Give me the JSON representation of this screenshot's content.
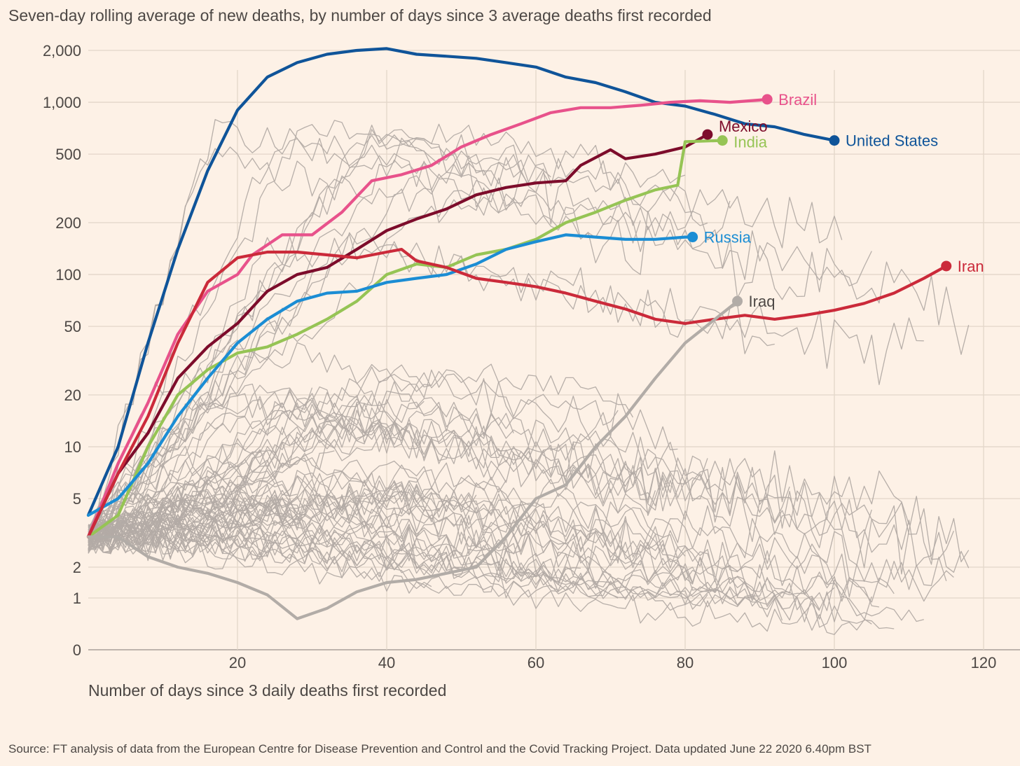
{
  "chart_data": {
    "type": "line",
    "subtitle": "Seven-day rolling average of new deaths, by number of days since 3 average deaths first recorded",
    "xlabel": "Number of days since 3 daily deaths first recorded",
    "ylabel": "",
    "source": "Source: FT analysis of data from the European Centre for Disease Prevention and Control and the Covid Tracking Project. Data updated June 22 2020 6.40pm BST",
    "x_scale": "linear",
    "y_scale": "log (with 0–2 linear segment)",
    "xlim": [
      0,
      124
    ],
    "ylim": [
      0,
      2300
    ],
    "x_ticks": [
      20,
      40,
      60,
      80,
      100,
      120
    ],
    "x_tick_labels": [
      "20",
      "40",
      "60",
      "80",
      "100",
      "120"
    ],
    "y_ticks": [
      0,
      1,
      2,
      5,
      10,
      20,
      50,
      100,
      200,
      500,
      1000,
      2000
    ],
    "y_tick_labels": [
      "0",
      "1",
      "2",
      "5",
      "10",
      "20",
      "50",
      "100",
      "200",
      "500",
      "1,000",
      "2,000"
    ],
    "grid": true,
    "legend": "none (direct labels at line ends)",
    "series": [
      {
        "name": "United States",
        "color": "#0f5499",
        "points": [
          [
            0,
            4
          ],
          [
            4,
            10
          ],
          [
            8,
            40
          ],
          [
            12,
            140
          ],
          [
            16,
            400
          ],
          [
            20,
            900
          ],
          [
            24,
            1400
          ],
          [
            28,
            1700
          ],
          [
            32,
            1900
          ],
          [
            36,
            2000
          ],
          [
            40,
            2050
          ],
          [
            44,
            1900
          ],
          [
            48,
            1850
          ],
          [
            52,
            1800
          ],
          [
            56,
            1700
          ],
          [
            60,
            1600
          ],
          [
            64,
            1400
          ],
          [
            68,
            1300
          ],
          [
            72,
            1150
          ],
          [
            76,
            1000
          ],
          [
            80,
            950
          ],
          [
            84,
            850
          ],
          [
            88,
            750
          ],
          [
            92,
            720
          ],
          [
            96,
            650
          ],
          [
            100,
            600
          ]
        ]
      },
      {
        "name": "Brazil",
        "color": "#e8528b",
        "points": [
          [
            0,
            3
          ],
          [
            4,
            8
          ],
          [
            8,
            18
          ],
          [
            12,
            45
          ],
          [
            16,
            80
          ],
          [
            20,
            100
          ],
          [
            22,
            130
          ],
          [
            26,
            170
          ],
          [
            30,
            170
          ],
          [
            34,
            230
          ],
          [
            38,
            350
          ],
          [
            42,
            380
          ],
          [
            46,
            430
          ],
          [
            50,
            550
          ],
          [
            54,
            650
          ],
          [
            58,
            750
          ],
          [
            62,
            870
          ],
          [
            66,
            930
          ],
          [
            70,
            930
          ],
          [
            74,
            960
          ],
          [
            78,
            1000
          ],
          [
            82,
            1020
          ],
          [
            86,
            1000
          ],
          [
            90,
            1030
          ],
          [
            91,
            1040
          ]
        ]
      },
      {
        "name": "Mexico",
        "color": "#7d0c2b",
        "points": [
          [
            0,
            3
          ],
          [
            4,
            7
          ],
          [
            8,
            12
          ],
          [
            12,
            25
          ],
          [
            16,
            38
          ],
          [
            20,
            52
          ],
          [
            24,
            80
          ],
          [
            28,
            100
          ],
          [
            32,
            110
          ],
          [
            36,
            140
          ],
          [
            40,
            180
          ],
          [
            44,
            210
          ],
          [
            48,
            240
          ],
          [
            52,
            290
          ],
          [
            56,
            320
          ],
          [
            60,
            340
          ],
          [
            64,
            350
          ],
          [
            66,
            430
          ],
          [
            70,
            530
          ],
          [
            72,
            470
          ],
          [
            76,
            500
          ],
          [
            80,
            550
          ],
          [
            83,
            650
          ]
        ]
      },
      {
        "name": "India",
        "color": "#96c455",
        "points": [
          [
            0,
            3
          ],
          [
            4,
            4
          ],
          [
            8,
            10
          ],
          [
            12,
            20
          ],
          [
            16,
            28
          ],
          [
            20,
            35
          ],
          [
            24,
            38
          ],
          [
            28,
            45
          ],
          [
            32,
            55
          ],
          [
            36,
            70
          ],
          [
            40,
            100
          ],
          [
            44,
            115
          ],
          [
            48,
            110
          ],
          [
            52,
            130
          ],
          [
            56,
            140
          ],
          [
            60,
            160
          ],
          [
            64,
            200
          ],
          [
            68,
            230
          ],
          [
            72,
            270
          ],
          [
            76,
            310
          ],
          [
            79,
            330
          ],
          [
            80,
            590
          ],
          [
            85,
            600
          ]
        ]
      },
      {
        "name": "Russia",
        "color": "#1b8dd4",
        "points": [
          [
            0,
            4
          ],
          [
            4,
            5
          ],
          [
            8,
            8
          ],
          [
            12,
            15
          ],
          [
            16,
            25
          ],
          [
            20,
            40
          ],
          [
            24,
            55
          ],
          [
            28,
            70
          ],
          [
            32,
            78
          ],
          [
            36,
            80
          ],
          [
            40,
            90
          ],
          [
            44,
            95
          ],
          [
            48,
            100
          ],
          [
            52,
            115
          ],
          [
            56,
            140
          ],
          [
            60,
            155
          ],
          [
            64,
            170
          ],
          [
            68,
            165
          ],
          [
            72,
            160
          ],
          [
            76,
            160
          ],
          [
            80,
            165
          ],
          [
            81,
            165
          ]
        ]
      },
      {
        "name": "Iran",
        "color": "#cb2a3a",
        "points": [
          [
            0,
            3
          ],
          [
            4,
            7
          ],
          [
            8,
            15
          ],
          [
            12,
            40
          ],
          [
            16,
            90
          ],
          [
            20,
            125
          ],
          [
            24,
            135
          ],
          [
            28,
            135
          ],
          [
            32,
            130
          ],
          [
            36,
            125
          ],
          [
            40,
            135
          ],
          [
            42,
            140
          ],
          [
            44,
            120
          ],
          [
            48,
            110
          ],
          [
            52,
            95
          ],
          [
            56,
            90
          ],
          [
            60,
            85
          ],
          [
            64,
            78
          ],
          [
            68,
            70
          ],
          [
            72,
            63
          ],
          [
            76,
            55
          ],
          [
            80,
            52
          ],
          [
            84,
            55
          ],
          [
            88,
            58
          ],
          [
            92,
            55
          ],
          [
            96,
            58
          ],
          [
            100,
            62
          ],
          [
            104,
            68
          ],
          [
            108,
            78
          ],
          [
            112,
            95
          ],
          [
            115,
            112
          ]
        ]
      },
      {
        "name": "Iraq",
        "color": "#b2aca7",
        "points": [
          [
            0,
            3
          ],
          [
            4,
            3
          ],
          [
            8,
            2.3
          ],
          [
            12,
            2.0
          ],
          [
            16,
            1.8
          ],
          [
            20,
            1.5
          ],
          [
            24,
            1.1
          ],
          [
            28,
            0.6
          ],
          [
            32,
            0.8
          ],
          [
            36,
            1.2
          ],
          [
            40,
            1.5
          ],
          [
            44,
            1.6
          ],
          [
            48,
            1.8
          ],
          [
            52,
            2.0
          ],
          [
            56,
            3
          ],
          [
            60,
            5
          ],
          [
            64,
            6
          ],
          [
            68,
            10
          ],
          [
            72,
            15
          ],
          [
            76,
            25
          ],
          [
            80,
            40
          ],
          [
            84,
            55
          ],
          [
            87,
            70
          ]
        ]
      }
    ],
    "labels": [
      {
        "name": "Brazil",
        "text": "Brazil",
        "x": 91,
        "y": 1040
      },
      {
        "name": "United States",
        "text": "United States",
        "x": 100,
        "y": 600
      },
      {
        "name": "Mexico",
        "text": "Mexico",
        "x": 83,
        "y": 650
      },
      {
        "name": "India",
        "text": "India",
        "x": 85,
        "y": 600
      },
      {
        "name": "Russia",
        "text": "Russia",
        "x": 81,
        "y": 165
      },
      {
        "name": "Iran",
        "text": "Iran",
        "x": 115,
        "y": 112
      },
      {
        "name": "Iraq",
        "text": "Iraq",
        "x": 87,
        "y": 70
      }
    ]
  }
}
